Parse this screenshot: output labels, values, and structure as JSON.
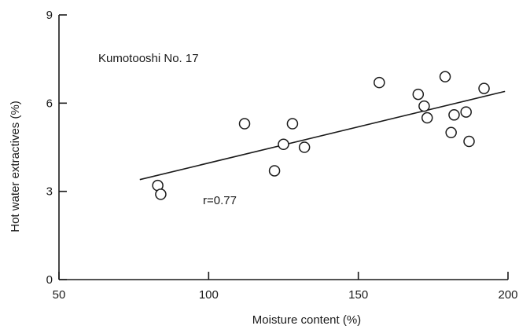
{
  "chart_data": {
    "type": "scatter",
    "title": "",
    "xlabel": "Moisture content (%)",
    "ylabel": "Hot water extractives (%)",
    "xlim": [
      50,
      200
    ],
    "ylim": [
      0,
      9
    ],
    "xticks": [
      50,
      100,
      150,
      200
    ],
    "yticks": [
      0,
      3,
      6,
      9
    ],
    "grid": false,
    "annotations": {
      "sample": "Kumotooshi No. 17",
      "correlation": "r=0.77"
    },
    "points": [
      {
        "x": 83,
        "y": 3.2
      },
      {
        "x": 84,
        "y": 2.9
      },
      {
        "x": 112,
        "y": 5.3
      },
      {
        "x": 122,
        "y": 3.7
      },
      {
        "x": 125,
        "y": 4.6
      },
      {
        "x": 128,
        "y": 5.3
      },
      {
        "x": 132,
        "y": 4.5
      },
      {
        "x": 157,
        "y": 6.7
      },
      {
        "x": 170,
        "y": 6.3
      },
      {
        "x": 172,
        "y": 5.9
      },
      {
        "x": 173,
        "y": 5.5
      },
      {
        "x": 179,
        "y": 6.9
      },
      {
        "x": 181,
        "y": 5.0
      },
      {
        "x": 182,
        "y": 5.6
      },
      {
        "x": 186,
        "y": 5.7
      },
      {
        "x": 187,
        "y": 4.7
      },
      {
        "x": 192,
        "y": 6.5
      }
    ],
    "regression": {
      "x": [
        77,
        199
      ],
      "y": [
        3.4,
        6.4
      ]
    }
  }
}
